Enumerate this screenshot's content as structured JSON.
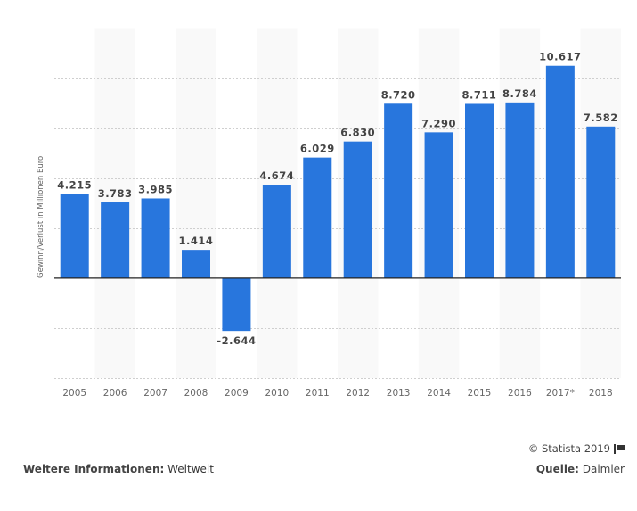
{
  "chart_data": {
    "type": "bar",
    "title": "",
    "xlabel": "",
    "ylabel": "Gewinn/Verlust in Millionen Euro",
    "categories": [
      "2005",
      "2006",
      "2007",
      "2008",
      "2009",
      "2010",
      "2011",
      "2012",
      "2013",
      "2014",
      "2015",
      "2016",
      "2017*",
      "2018"
    ],
    "values": [
      4215,
      3783,
      3985,
      1414,
      -2644,
      4674,
      6029,
      6830,
      8720,
      7290,
      8711,
      8784,
      10617,
      7582
    ],
    "data_labels": [
      "4.215",
      "3.783",
      "3.985",
      "1.414",
      "-2.644",
      "4.674",
      "6.029",
      "6.830",
      "8.720",
      "7.290",
      "8.711",
      "8.784",
      "10.617",
      "7.582"
    ],
    "ylim": [
      -5000,
      12500
    ],
    "ytick_step": 2500,
    "y_tick_labels_visible": false,
    "grid": true,
    "bar_color": "#2876dd",
    "legend": "none"
  },
  "footer": {
    "copyright": "© Statista 2019",
    "more_info_label": "Weitere Informationen:",
    "more_info_value": "Weltweit",
    "source_label": "Quelle:",
    "source_value": "Daimler"
  }
}
